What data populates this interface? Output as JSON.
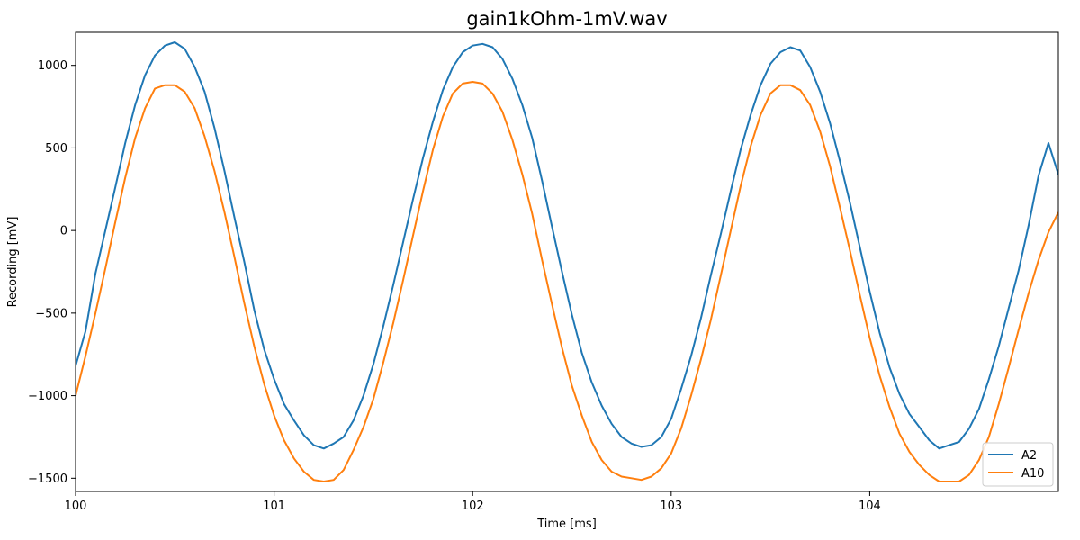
{
  "chart_data": {
    "type": "line",
    "title": "gain1kOhm-1mV.wav",
    "xlabel": "Time [ms]",
    "ylabel": "Recording [mV]",
    "xlim": [
      100,
      104.95
    ],
    "ylim": [
      -1580,
      1200
    ],
    "xticks": [
      100,
      101,
      102,
      103,
      104
    ],
    "xtick_labels": [
      "100",
      "101",
      "102",
      "103",
      "104"
    ],
    "yticks": [
      -1500,
      -1000,
      -500,
      0,
      500,
      1000
    ],
    "ytick_labels": [
      "−1500",
      "−1000",
      "−500",
      "0",
      "500",
      "1000"
    ],
    "grid": false,
    "legend_position": "lower-right",
    "series": [
      {
        "name": "A2",
        "color": "#1f77b4",
        "x": [
          100.0,
          100.05,
          100.1,
          100.15,
          100.2,
          100.25,
          100.3,
          100.35,
          100.4,
          100.45,
          100.5,
          100.55,
          100.6,
          100.65,
          100.7,
          100.75,
          100.8,
          100.85,
          100.9,
          100.95,
          101.0,
          101.05,
          101.1,
          101.15,
          101.2,
          101.25,
          101.3,
          101.35,
          101.4,
          101.45,
          101.5,
          101.55,
          101.6,
          101.65,
          101.7,
          101.75,
          101.8,
          101.85,
          101.9,
          101.95,
          102.0,
          102.05,
          102.1,
          102.15,
          102.2,
          102.25,
          102.3,
          102.35,
          102.4,
          102.45,
          102.5,
          102.55,
          102.6,
          102.65,
          102.7,
          102.75,
          102.8,
          102.85,
          102.9,
          102.95,
          103.0,
          103.05,
          103.1,
          103.15,
          103.2,
          103.25,
          103.3,
          103.35,
          103.4,
          103.45,
          103.5,
          103.55,
          103.6,
          103.65,
          103.7,
          103.75,
          103.8,
          103.85,
          103.9,
          103.95,
          104.0,
          104.05,
          104.1,
          104.15,
          104.2,
          104.25,
          104.3,
          104.35,
          104.4,
          104.45,
          104.5,
          104.55,
          104.6,
          104.65,
          104.7,
          104.75,
          104.8,
          104.85,
          104.9,
          104.95
        ],
        "y": [
          -820,
          -610,
          -260,
          0,
          260,
          530,
          760,
          940,
          1060,
          1120,
          1140,
          1100,
          990,
          840,
          620,
          360,
          80,
          -190,
          -480,
          -720,
          -900,
          -1050,
          -1150,
          -1240,
          -1300,
          -1320,
          -1290,
          -1250,
          -1150,
          -1000,
          -810,
          -580,
          -330,
          -70,
          190,
          440,
          660,
          850,
          990,
          1080,
          1120,
          1130,
          1110,
          1040,
          920,
          760,
          560,
          300,
          20,
          -250,
          -510,
          -740,
          -920,
          -1060,
          -1170,
          -1250,
          -1290,
          -1310,
          -1300,
          -1250,
          -1140,
          -960,
          -760,
          -530,
          -270,
          -20,
          240,
          490,
          700,
          880,
          1010,
          1080,
          1110,
          1090,
          990,
          840,
          650,
          420,
          170,
          -100,
          -370,
          -620,
          -830,
          -990,
          -1110,
          -1190,
          -1270,
          -1320,
          -1300,
          -1280,
          -1200,
          -1080,
          -900,
          -700,
          -470,
          -240,
          30,
          330,
          530,
          340
        ]
      },
      {
        "name": "A10",
        "color": "#ff7f0e",
        "x": [
          100.0,
          100.05,
          100.1,
          100.15,
          100.2,
          100.25,
          100.3,
          100.35,
          100.4,
          100.45,
          100.5,
          100.55,
          100.6,
          100.65,
          100.7,
          100.75,
          100.8,
          100.85,
          100.9,
          100.95,
          101.0,
          101.05,
          101.1,
          101.15,
          101.2,
          101.25,
          101.3,
          101.35,
          101.4,
          101.45,
          101.5,
          101.55,
          101.6,
          101.65,
          101.7,
          101.75,
          101.8,
          101.85,
          101.9,
          101.95,
          102.0,
          102.05,
          102.1,
          102.15,
          102.2,
          102.25,
          102.3,
          102.35,
          102.4,
          102.45,
          102.5,
          102.55,
          102.6,
          102.65,
          102.7,
          102.75,
          102.8,
          102.85,
          102.9,
          102.95,
          103.0,
          103.05,
          103.1,
          103.15,
          103.2,
          103.25,
          103.3,
          103.35,
          103.4,
          103.45,
          103.5,
          103.55,
          103.6,
          103.65,
          103.7,
          103.75,
          103.8,
          103.85,
          103.9,
          103.95,
          104.0,
          104.05,
          104.1,
          104.15,
          104.2,
          104.25,
          104.3,
          104.35,
          104.4,
          104.45,
          104.5,
          104.55,
          104.6,
          104.65,
          104.7,
          104.75,
          104.8,
          104.85,
          104.9,
          104.95
        ],
        "y": [
          -1000,
          -760,
          -500,
          -230,
          50,
          320,
          560,
          740,
          860,
          880,
          880,
          840,
          740,
          570,
          360,
          110,
          -160,
          -440,
          -700,
          -930,
          -1120,
          -1270,
          -1380,
          -1460,
          -1510,
          -1520,
          -1510,
          -1450,
          -1330,
          -1190,
          -1020,
          -800,
          -560,
          -300,
          -30,
          240,
          490,
          690,
          830,
          890,
          900,
          890,
          830,
          720,
          550,
          340,
          100,
          -180,
          -450,
          -710,
          -940,
          -1120,
          -1280,
          -1390,
          -1460,
          -1490,
          -1500,
          -1510,
          -1490,
          -1440,
          -1350,
          -1200,
          -1000,
          -780,
          -540,
          -270,
          0,
          270,
          510,
          700,
          830,
          880,
          880,
          850,
          760,
          600,
          390,
          140,
          -120,
          -390,
          -650,
          -880,
          -1070,
          -1230,
          -1340,
          -1420,
          -1480,
          -1520,
          -1520,
          -1520,
          -1480,
          -1390,
          -1250,
          -1050,
          -830,
          -600,
          -380,
          -180,
          -10,
          110
        ]
      }
    ]
  }
}
